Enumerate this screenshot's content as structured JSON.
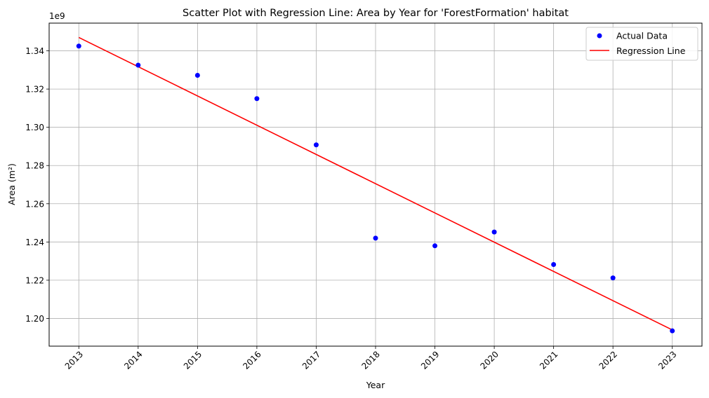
{
  "chart_data": {
    "type": "scatter",
    "title": "Scatter Plot with Regression Line: Area by Year for 'ForestFormation' habitat",
    "xlabel": "Year",
    "ylabel": "Area (m²)",
    "y_offset_label": "1e9",
    "x": [
      2013,
      2014,
      2015,
      2016,
      2017,
      2018,
      2019,
      2020,
      2021,
      2022,
      2023
    ],
    "x_tick_labels": [
      "2013",
      "2014",
      "2015",
      "2016",
      "2017",
      "2018",
      "2019",
      "2020",
      "2021",
      "2022",
      "2023"
    ],
    "y_tick_values": [
      1.2,
      1.22,
      1.24,
      1.26,
      1.28,
      1.3,
      1.32,
      1.34
    ],
    "y_tick_labels": [
      "1.20",
      "1.22",
      "1.24",
      "1.26",
      "1.28",
      "1.30",
      "1.32",
      "1.34"
    ],
    "xlim": [
      2012.5,
      2023.5
    ],
    "ylim": [
      1.1855,
      1.3545
    ],
    "grid": true,
    "legend_position": "top-right",
    "series": [
      {
        "name": "Actual Data",
        "kind": "scatter",
        "color": "#0000ff",
        "values": [
          1.3425,
          1.3325,
          1.3272,
          1.315,
          1.2908,
          1.242,
          1.238,
          1.2452,
          1.2282,
          1.2212,
          1.1935
        ]
      },
      {
        "name": "Regression Line",
        "kind": "line",
        "color": "#ff0000",
        "x": [
          2013,
          2023
        ],
        "values": [
          1.347,
          1.194
        ]
      }
    ]
  }
}
